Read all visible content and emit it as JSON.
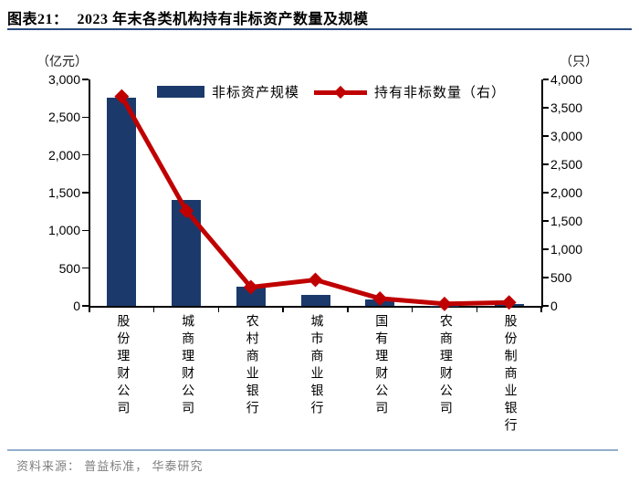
{
  "header": {
    "tag": "图表21：",
    "title": "2023 年末各类机构持有非标资产数量及规模"
  },
  "legend": {
    "bar_label": "非标资产规模",
    "line_label": "持有非标数量（右）"
  },
  "axes": {
    "left_unit": "（亿元）",
    "right_unit": "（只）",
    "left_tick_labels": [
      "0",
      "500",
      "1,000",
      "1,500",
      "2,000",
      "2,500",
      "3,000"
    ],
    "right_tick_labels": [
      "0",
      "500",
      "1,000",
      "1,500",
      "2,000",
      "2,500",
      "3,000",
      "3,500",
      "4,000"
    ]
  },
  "chart_data": {
    "type": "bar",
    "title": "2023 年末各类机构持有非标资产数量及规模",
    "categories": [
      "股份理财公司",
      "城商理财公司",
      "农村商业银行",
      "城市商业银行",
      "国有理财公司",
      "农商理财公司",
      "股份制商业银行"
    ],
    "series": [
      {
        "name": "非标资产规模",
        "type": "bar",
        "axis": "left",
        "values": [
          2760,
          1400,
          250,
          145,
          80,
          5,
          30
        ]
      },
      {
        "name": "持有非标数量（右）",
        "type": "line",
        "axis": "right",
        "values": [
          3700,
          1680,
          330,
          460,
          130,
          35,
          60
        ]
      }
    ],
    "xlabel": "",
    "left_ylabel": "（亿元）",
    "right_ylabel": "（只）",
    "left_ylim": [
      0,
      3000
    ],
    "left_step": 500,
    "right_ylim": [
      0,
      4000
    ],
    "right_step": 500,
    "grid": false,
    "legend_position": "top-inside"
  },
  "colors": {
    "bar": "#1B3A6B",
    "line": "#C00000",
    "axis": "#000000",
    "title_rule": "#2B4B7E",
    "footer_rule": "#94AECB",
    "footer_text": "#7F7F7F"
  },
  "footer": {
    "source": "资料来源： 普益标准， 华泰研究"
  }
}
